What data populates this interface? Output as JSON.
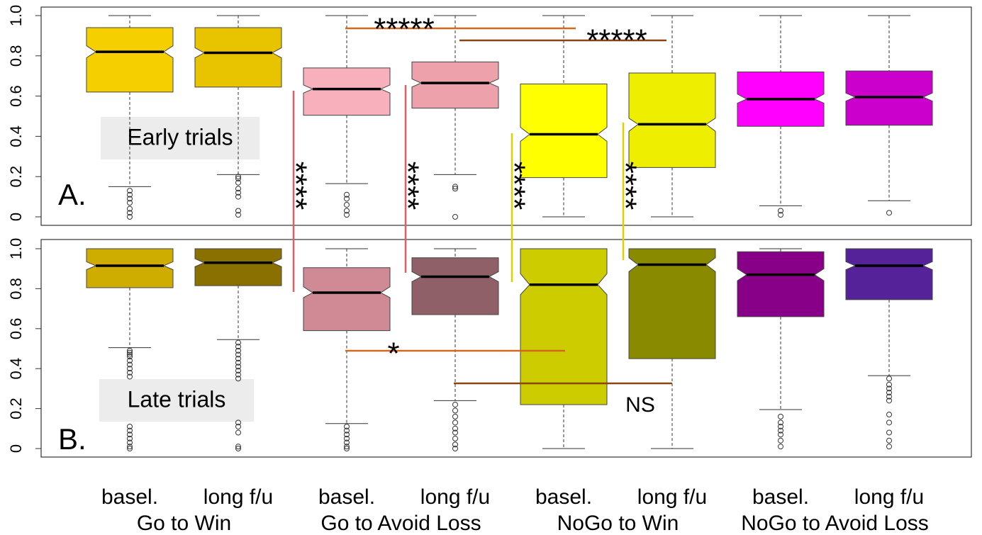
{
  "chart_data": [
    {
      "type": "boxplot",
      "panel_label": "A.",
      "subtitle": "Early trials",
      "ylim": [
        0,
        1
      ],
      "yticks": [
        0,
        0.2,
        0.4,
        0.6,
        0.8,
        {
          "value": 1,
          "label": "1.0"
        }
      ],
      "series": [
        {
          "color": "#f5cf00",
          "min": 0.15,
          "q1": 0.62,
          "median": 0.82,
          "q3": 0.94,
          "max": 1,
          "notch": [
            0.79,
            0.85
          ],
          "outliers": [
            0.13,
            0.11,
            0.09,
            0.07,
            0.04,
            0.02,
            0
          ]
        },
        {
          "color": "#e8c300",
          "min": 0.21,
          "q1": 0.645,
          "median": 0.815,
          "q3": 0.94,
          "max": 1,
          "notch": [
            0.79,
            0.84
          ],
          "outliers": [
            0.2,
            0.19,
            0.17,
            0.14,
            0.12,
            0.1,
            0.03,
            0.01
          ]
        },
        {
          "color": "#f7b0bc",
          "min": 0.165,
          "q1": 0.505,
          "median": 0.635,
          "q3": 0.74,
          "max": 1,
          "notch": [
            0.615,
            0.655
          ],
          "outliers": [
            0.11,
            0.09,
            0.06,
            0.03,
            0.01
          ]
        },
        {
          "color": "#eda1ab",
          "min": 0.21,
          "q1": 0.54,
          "median": 0.665,
          "q3": 0.77,
          "max": 1,
          "notch": [
            0.645,
            0.685
          ],
          "outliers": [
            0.15,
            0.14,
            0
          ]
        },
        {
          "color": "#ffff00",
          "min": 0,
          "q1": 0.195,
          "median": 0.41,
          "q3": 0.66,
          "max": 1,
          "notch": [
            0.375,
            0.445
          ],
          "outliers": []
        },
        {
          "color": "#eeee00",
          "min": 0,
          "q1": 0.245,
          "median": 0.46,
          "q3": 0.715,
          "max": 1,
          "notch": [
            0.425,
            0.49
          ],
          "outliers": []
        },
        {
          "color": "#ff00ff",
          "min": 0.055,
          "q1": 0.45,
          "median": 0.585,
          "q3": 0.72,
          "max": 1,
          "notch": [
            0.565,
            0.61
          ],
          "outliers": [
            0.03,
            0.01
          ]
        },
        {
          "color": "#cc00cc",
          "min": 0.08,
          "q1": 0.455,
          "median": 0.595,
          "q3": 0.725,
          "max": 1,
          "notch": [
            0.575,
            0.615
          ],
          "outliers": [
            0.02
          ]
        }
      ],
      "annotations": [
        {
          "text": "*****",
          "color": "#d2691e"
        },
        {
          "text": "*****",
          "color": "#8b4513"
        },
        {
          "text": "****",
          "color": "#e06060"
        },
        {
          "text": "****",
          "color": "#e06060"
        },
        {
          "text": "****",
          "color": "#e0d000"
        },
        {
          "text": "****",
          "color": "#e0d000"
        }
      ]
    },
    {
      "type": "boxplot",
      "panel_label": "B.",
      "subtitle": "Late trials",
      "ylim": [
        0,
        1
      ],
      "yticks": [
        0,
        0.2,
        0.4,
        0.6,
        0.8,
        {
          "value": 1,
          "label": "1.0"
        }
      ],
      "categories": [
        "basel.",
        "long f/u",
        "basel.",
        "long f/u",
        "basel.",
        "long f/u",
        "basel.",
        "long f/u"
      ],
      "groups": [
        {
          "name": "Go to Win",
          "color": "#9a6a10"
        },
        {
          "name": "Go to Avoid Loss",
          "color": "#d0709a"
        },
        {
          "name": "NoGo to Win",
          "color": "#b8cc00"
        },
        {
          "name": "NoGo to Avoid Loss",
          "color": "#6a1fbf"
        }
      ],
      "series": [
        {
          "color": "#cfad00",
          "min": 0.505,
          "q1": 0.805,
          "median": 0.915,
          "q3": 1,
          "max": 1,
          "notch": [
            0.895,
            0.935
          ],
          "outliers": [
            0.49,
            0.48,
            0.47,
            0.46,
            0.44,
            0.42,
            0.4,
            0.38,
            0.36,
            0.11,
            0.09,
            0.07,
            0.05,
            0.03,
            0.01,
            0
          ]
        },
        {
          "color": "#8a7000",
          "min": 0.545,
          "q1": 0.815,
          "median": 0.93,
          "q3": 1,
          "max": 1,
          "notch": [
            0.91,
            0.95
          ],
          "outliers": [
            0.53,
            0.51,
            0.49,
            0.47,
            0.45,
            0.43,
            0.41,
            0.39,
            0.37,
            0.35,
            0.13,
            0.11,
            0.08,
            0.01,
            0
          ]
        },
        {
          "color": "#d08a96",
          "min": 0.125,
          "q1": 0.59,
          "median": 0.78,
          "q3": 0.905,
          "max": 1,
          "notch": [
            0.755,
            0.81
          ],
          "outliers": [
            0.11,
            0.09,
            0.07,
            0.05,
            0.03,
            0.01,
            0
          ]
        },
        {
          "color": "#8f6068",
          "min": 0.24,
          "q1": 0.67,
          "median": 0.86,
          "q3": 0.955,
          "max": 1,
          "notch": [
            0.835,
            0.885
          ],
          "outliers": [
            0.22,
            0.19,
            0.16,
            0.13,
            0.1,
            0.08,
            0.05,
            0.02,
            0
          ]
        },
        {
          "color": "#cccc00",
          "min": 0,
          "q1": 0.22,
          "median": 0.82,
          "q3": 1,
          "max": 1,
          "notch": [
            0.77,
            0.875
          ],
          "outliers": []
        },
        {
          "color": "#8a8a00",
          "min": 0,
          "q1": 0.45,
          "median": 0.92,
          "q3": 1,
          "max": 1,
          "notch": [
            0.885,
            0.955
          ],
          "outliers": []
        },
        {
          "color": "#880088",
          "min": 0.195,
          "q1": 0.66,
          "median": 0.87,
          "q3": 0.985,
          "max": 1,
          "notch": [
            0.84,
            0.9
          ],
          "outliers": [
            0.16,
            0.13,
            0.11,
            0.09,
            0.07,
            0.04,
            0.01
          ]
        },
        {
          "color": "#552299",
          "min": 0.365,
          "q1": 0.745,
          "median": 0.915,
          "q3": 1,
          "max": 1,
          "notch": [
            0.895,
            0.935
          ],
          "outliers": [
            0.35,
            0.32,
            0.3,
            0.28,
            0.26,
            0.24,
            0.17,
            0.13,
            0.08,
            0.04,
            0.01
          ]
        }
      ],
      "annotations": [
        {
          "text": "*",
          "color": "#d2691e"
        },
        {
          "text": "NS",
          "color": "#8b4513"
        }
      ]
    }
  ]
}
